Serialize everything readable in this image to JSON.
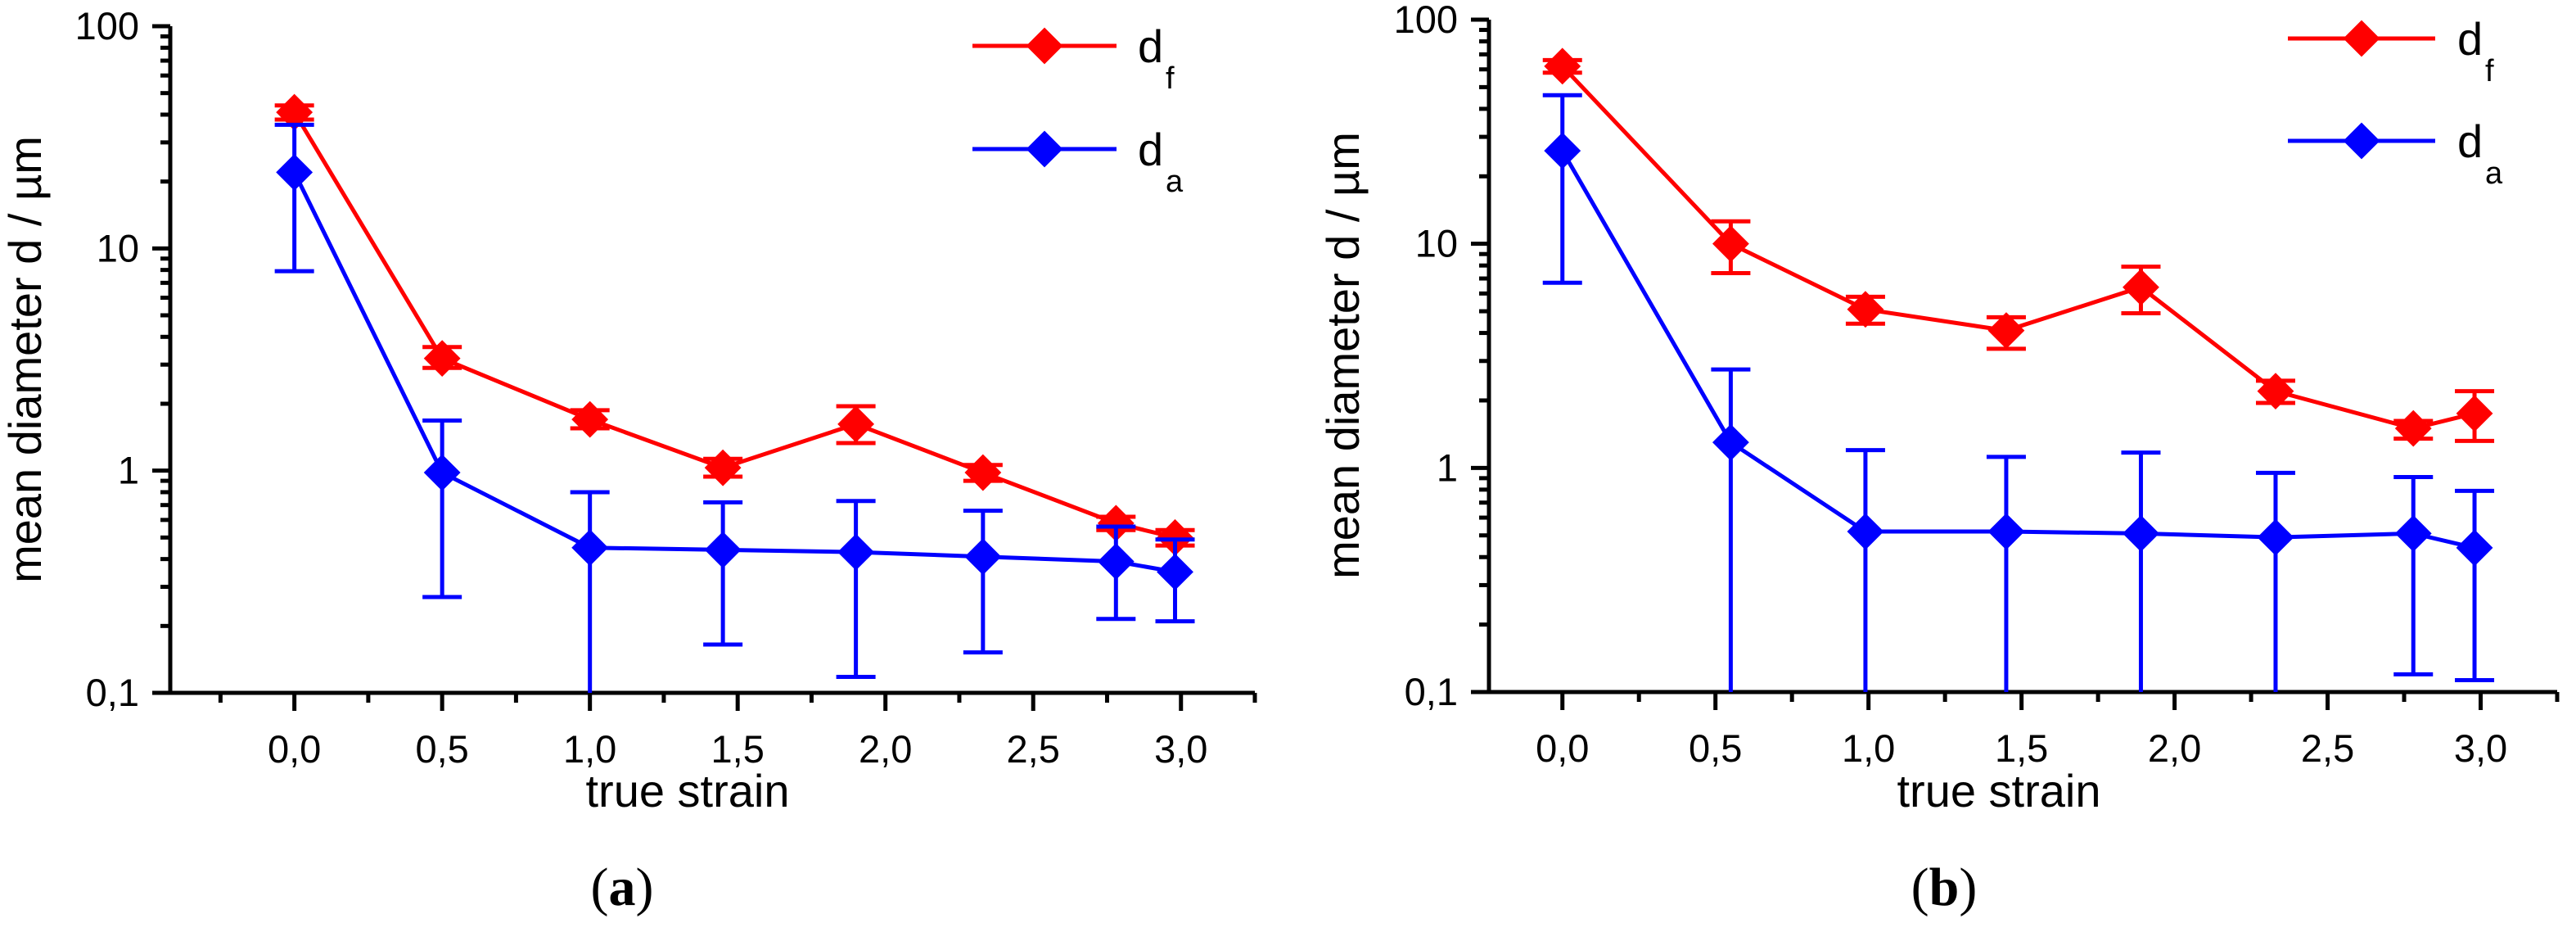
{
  "chart_data": [
    {
      "type": "line",
      "panel_label": "a",
      "xlabel": "true strain",
      "ylabel": "mean diameter d / µm",
      "yscale": "log",
      "xlim": [
        -0.42,
        3.25
      ],
      "ylim": [
        0.1,
        100
      ],
      "x_ticks": [
        0.0,
        0.5,
        1.0,
        1.5,
        2.0,
        2.5,
        3.0
      ],
      "x_tick_labels": [
        "0,0",
        "0,5",
        "1,0",
        "1,5",
        "2,0",
        "2,5",
        "3,0"
      ],
      "y_ticks": [
        0.1,
        1,
        10,
        100
      ],
      "y_tick_labels": [
        "0,1",
        "1",
        "10",
        "100"
      ],
      "legend_position": "top-right",
      "series": [
        {
          "name": "d",
          "subscript": "f",
          "color": "#ff0000",
          "x": [
            0.0,
            0.5,
            1.0,
            1.45,
            1.9,
            2.33,
            2.78,
            2.98
          ],
          "y": [
            41,
            3.2,
            1.7,
            1.03,
            1.62,
            0.98,
            0.58,
            0.5
          ],
          "err_low": [
            38,
            2.9,
            1.55,
            0.94,
            1.33,
            0.9,
            0.54,
            0.46
          ],
          "err_high": [
            44,
            3.6,
            1.87,
            1.13,
            1.95,
            1.06,
            0.62,
            0.54
          ]
        },
        {
          "name": "d",
          "subscript": "a",
          "color": "#0000ff",
          "x": [
            0.0,
            0.5,
            1.0,
            1.45,
            1.9,
            2.33,
            2.78,
            2.98
          ],
          "y": [
            22,
            0.98,
            0.45,
            0.44,
            0.43,
            0.41,
            0.39,
            0.35
          ],
          "err_low": [
            7.9,
            0.27,
            0.1,
            0.165,
            0.118,
            0.152,
            0.215,
            0.21
          ],
          "err_high": [
            36,
            1.68,
            0.8,
            0.72,
            0.73,
            0.66,
            0.56,
            0.49
          ]
        }
      ]
    },
    {
      "type": "line",
      "panel_label": "b",
      "xlabel": "true strain",
      "ylabel": "mean diameter d / µm",
      "yscale": "log",
      "xlim": [
        -0.24,
        3.25
      ],
      "ylim": [
        0.1,
        100
      ],
      "x_ticks": [
        0.0,
        0.5,
        1.0,
        1.5,
        2.0,
        2.5,
        3.0
      ],
      "x_tick_labels": [
        "0,0",
        "0,5",
        "1,0",
        "1,5",
        "2,0",
        "2,5",
        "3,0"
      ],
      "y_ticks": [
        0.1,
        1,
        10,
        100
      ],
      "y_tick_labels": [
        "0,1",
        "1",
        "10",
        "100"
      ],
      "legend_position": "top-right",
      "series": [
        {
          "name": "d",
          "subscript": "f",
          "color": "#ff0000",
          "x": [
            0.0,
            0.55,
            0.99,
            1.45,
            1.89,
            2.33,
            2.78,
            2.98
          ],
          "y": [
            62,
            10,
            5.1,
            4.1,
            6.4,
            2.2,
            1.5,
            1.75
          ],
          "err_low": [
            58,
            7.4,
            4.4,
            3.4,
            4.9,
            1.95,
            1.35,
            1.32
          ],
          "err_high": [
            66,
            12.6,
            5.8,
            4.7,
            7.9,
            2.45,
            1.62,
            2.2
          ]
        },
        {
          "name": "d",
          "subscript": "a",
          "color": "#0000ff",
          "x": [
            0.0,
            0.55,
            0.99,
            1.45,
            1.89,
            2.33,
            2.78,
            2.98
          ],
          "y": [
            26,
            1.3,
            0.52,
            0.52,
            0.51,
            0.49,
            0.51,
            0.44
          ],
          "err_low": [
            6.7,
            0.1,
            0.1,
            0.1,
            0.1,
            0.1,
            0.12,
            0.113
          ],
          "err_high": [
            46,
            2.75,
            1.2,
            1.12,
            1.17,
            0.95,
            0.91,
            0.79
          ]
        }
      ]
    }
  ]
}
